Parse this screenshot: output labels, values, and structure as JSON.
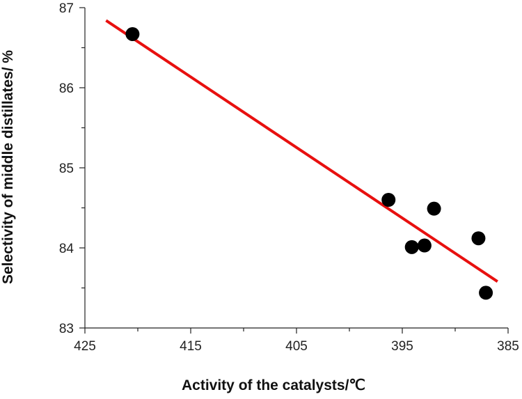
{
  "chart_data": {
    "type": "scatter",
    "title": "",
    "xlabel": "Activity of the catalysts/℃",
    "ylabel": "Selectivity of middle distillates/ %",
    "x_reversed": true,
    "xlim": [
      425,
      385
    ],
    "ylim": [
      83,
      87
    ],
    "xticks": [
      425,
      415,
      405,
      395,
      385
    ],
    "yticks": [
      83,
      84,
      85,
      86,
      87
    ],
    "grid": false,
    "legend": "none",
    "marker_color": "#000000",
    "points": [
      {
        "x": 420.5,
        "y": 86.67
      },
      {
        "x": 396.3,
        "y": 84.6
      },
      {
        "x": 394.1,
        "y": 84.01
      },
      {
        "x": 392.9,
        "y": 84.03
      },
      {
        "x": 392.0,
        "y": 84.49
      },
      {
        "x": 387.8,
        "y": 84.12
      },
      {
        "x": 387.1,
        "y": 83.44
      }
    ],
    "fit_line": {
      "color": "#e8100f",
      "x": [
        423,
        386
      ],
      "y": [
        86.84,
        83.58
      ]
    }
  }
}
